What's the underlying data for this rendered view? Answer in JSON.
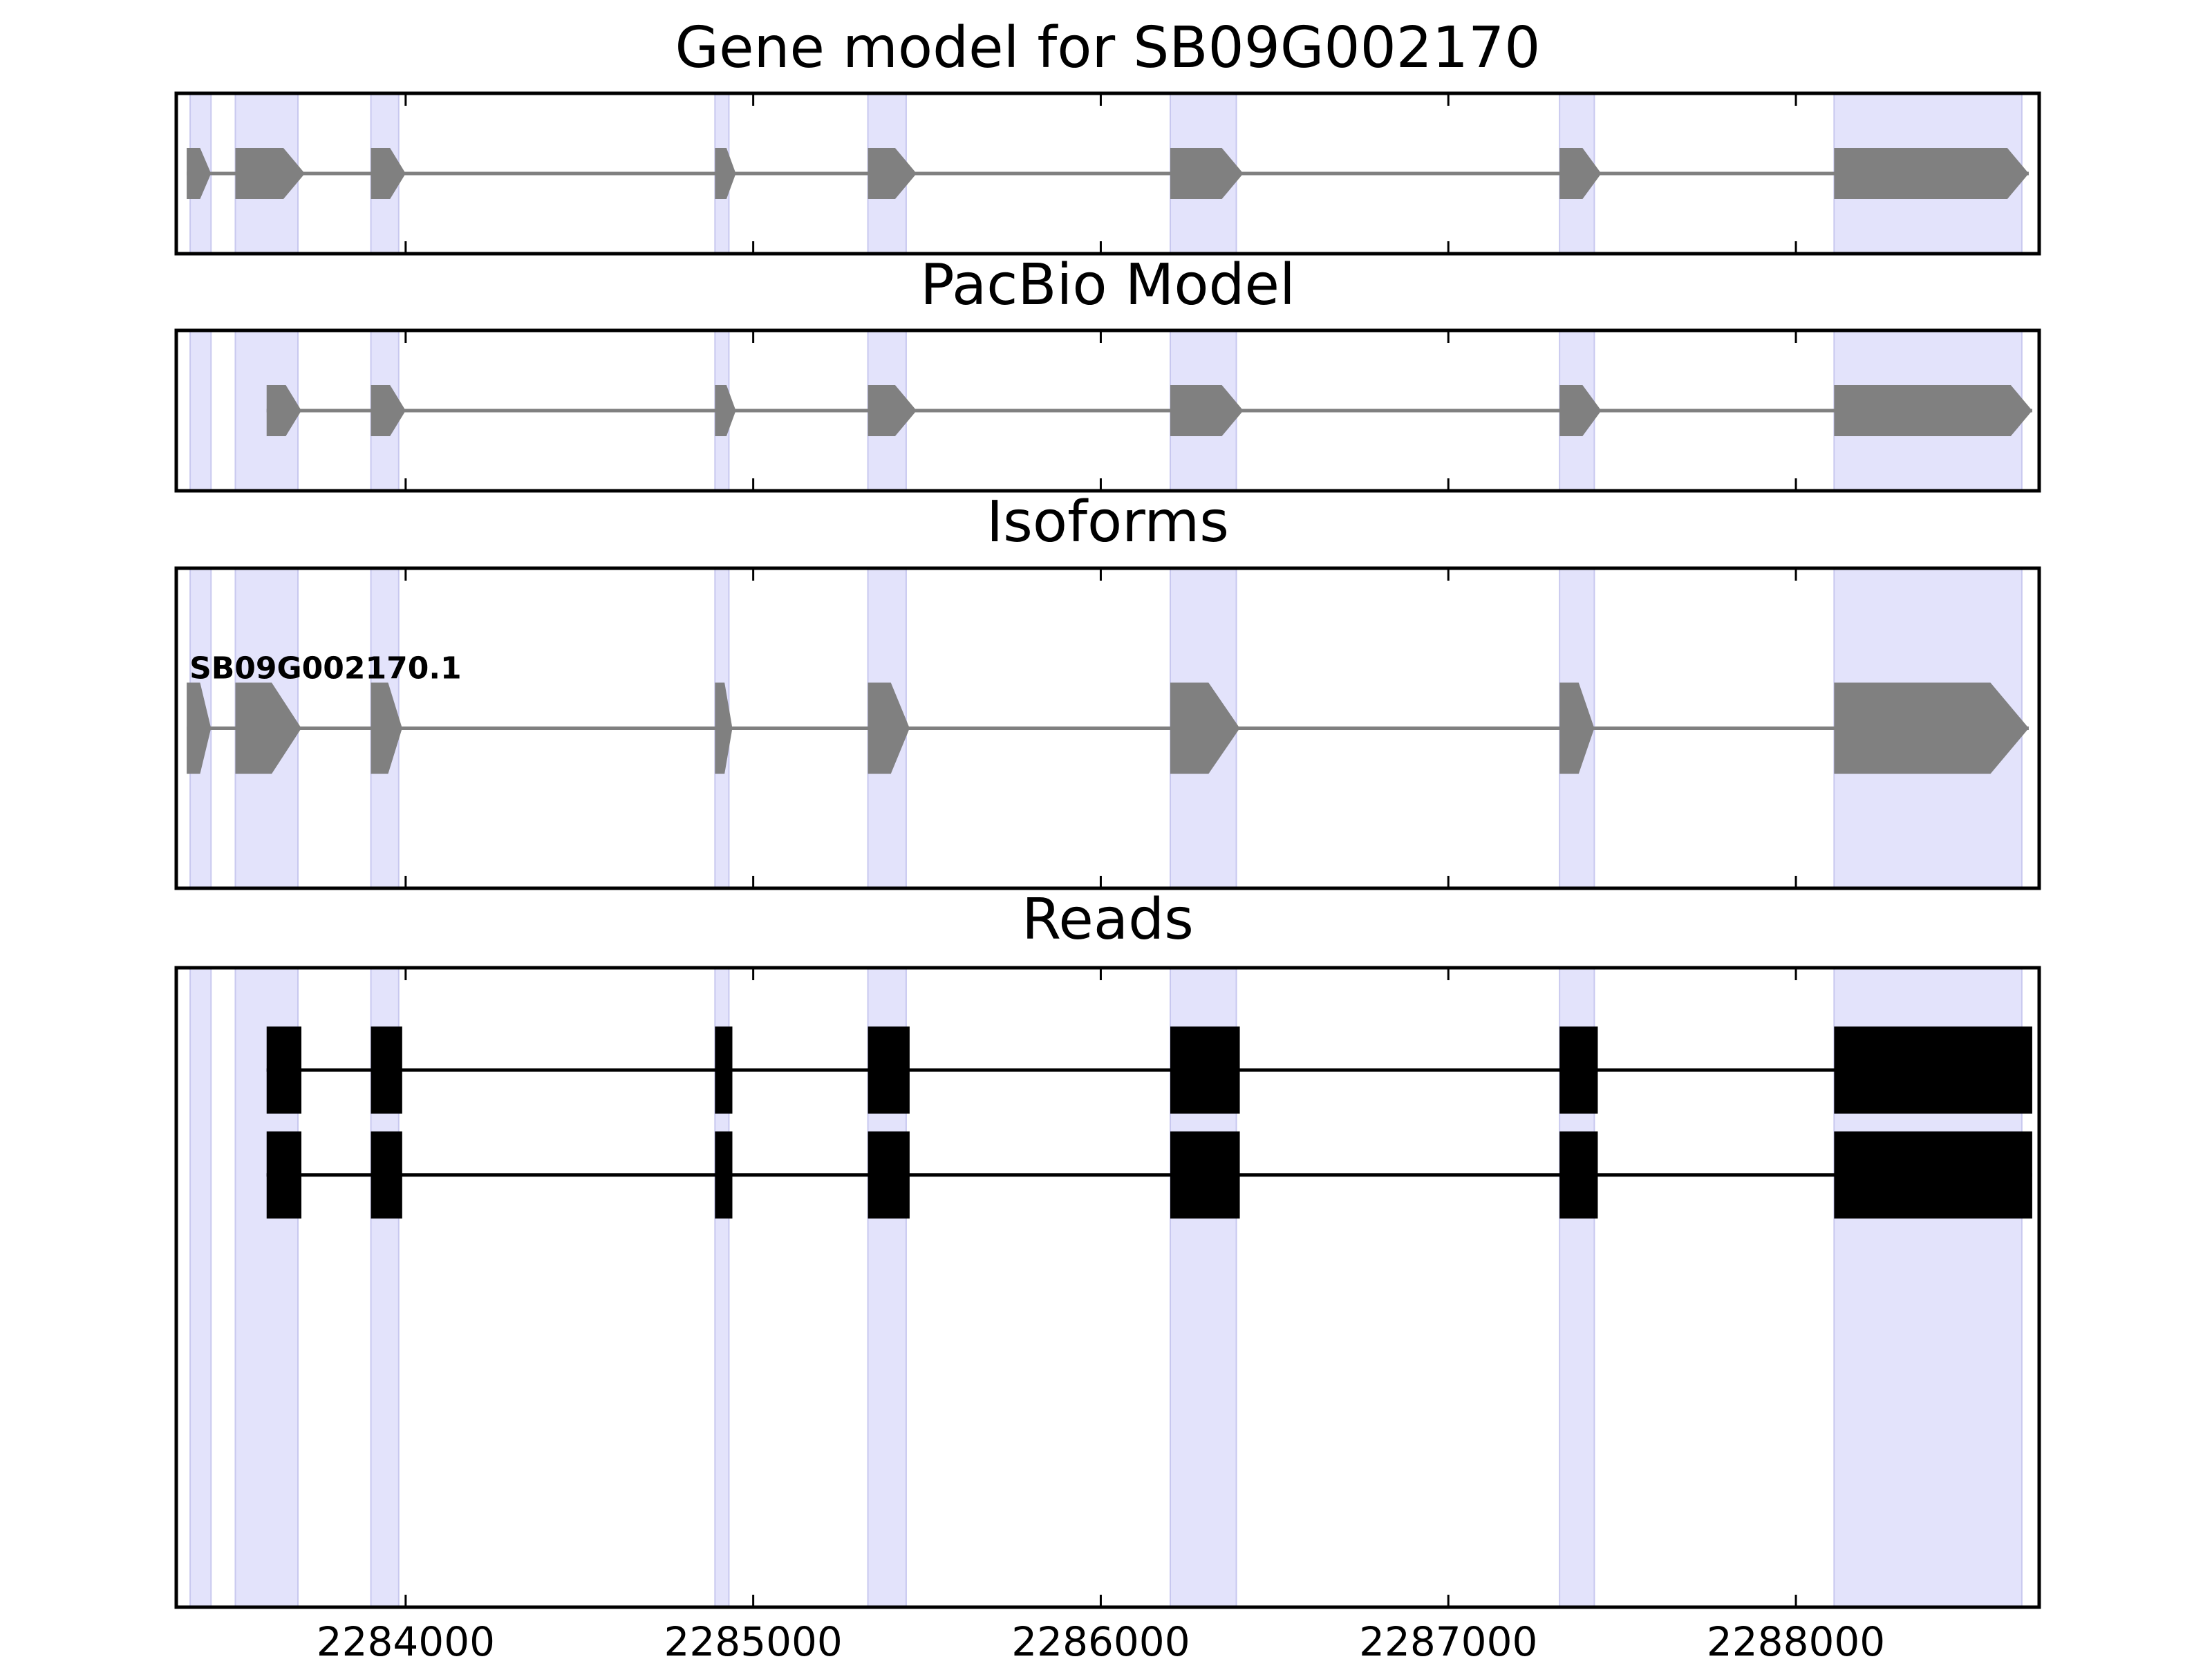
{
  "chart_data": {
    "type": "gene-structure",
    "x_range": [
      2283340,
      2288700
    ],
    "x_ticks": [
      2284000,
      2285000,
      2286000,
      2287000,
      2288000
    ],
    "x_tick_labels": [
      "2284000",
      "2285000",
      "2286000",
      "2287000",
      "2288000"
    ],
    "highlight_regions": [
      [
        2283380,
        2283440
      ],
      [
        2283510,
        2283690
      ],
      [
        2283900,
        2283980
      ],
      [
        2284890,
        2284930
      ],
      [
        2285330,
        2285440
      ],
      [
        2286200,
        2286390
      ],
      [
        2287320,
        2287420
      ],
      [
        2288110,
        2288650
      ]
    ],
    "panels": [
      {
        "title": "Gene model for SB09G002170",
        "style": "arrow",
        "tracks": [
          {
            "label": "",
            "exons": [
              [
                2283370,
                2283440
              ],
              [
                2283510,
                2283710
              ],
              [
                2283900,
                2284000
              ],
              [
                2284890,
                2284950
              ],
              [
                2285330,
                2285470
              ],
              [
                2286200,
                2286410
              ],
              [
                2287320,
                2287440
              ],
              [
                2288110,
                2288670
              ]
            ]
          }
        ]
      },
      {
        "title": "PacBio Model",
        "style": "arrow",
        "tracks": [
          {
            "label": "",
            "exons": [
              [
                2283600,
                2283700
              ],
              [
                2283900,
                2284000
              ],
              [
                2284890,
                2284950
              ],
              [
                2285330,
                2285470
              ],
              [
                2286200,
                2286410
              ],
              [
                2287320,
                2287440
              ],
              [
                2288110,
                2288680
              ]
            ]
          }
        ]
      },
      {
        "title": "Isoforms",
        "style": "arrow",
        "tracks": [
          {
            "label": "SB09G002170.1",
            "exons": [
              [
                2283370,
                2283440
              ],
              [
                2283510,
                2283700
              ],
              [
                2283900,
                2283990
              ],
              [
                2284890,
                2284940
              ],
              [
                2285330,
                2285450
              ],
              [
                2286200,
                2286400
              ],
              [
                2287320,
                2287420
              ],
              [
                2288110,
                2288670
              ]
            ]
          }
        ]
      },
      {
        "title": "Reads",
        "style": "block",
        "tracks": [
          {
            "label": "",
            "exons": [
              [
                2283600,
                2283700
              ],
              [
                2283900,
                2283990
              ],
              [
                2284890,
                2284940
              ],
              [
                2285330,
                2285450
              ],
              [
                2286200,
                2286400
              ],
              [
                2287320,
                2287430
              ],
              [
                2288110,
                2288680
              ]
            ]
          },
          {
            "label": "",
            "exons": [
              [
                2283600,
                2283700
              ],
              [
                2283900,
                2283990
              ],
              [
                2284890,
                2284940
              ],
              [
                2285330,
                2285450
              ],
              [
                2286200,
                2286400
              ],
              [
                2287320,
                2287430
              ],
              [
                2288110,
                2288680
              ]
            ]
          }
        ]
      }
    ]
  },
  "colors": {
    "highlight": "#e3e3fb",
    "highlight_edge": "#c8c8ef",
    "exon_arrow": "#808080",
    "intron_arrow": "#808080",
    "exon_block": "#000000",
    "intron_block": "#000000",
    "frame": "#000000",
    "text": "#000000"
  }
}
